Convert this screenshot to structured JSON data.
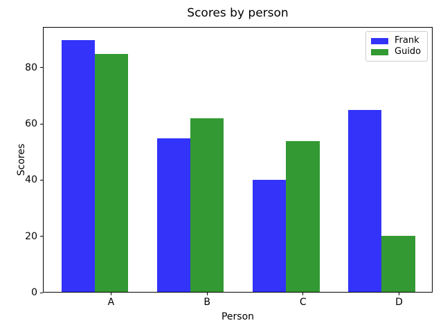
{
  "chart_data": {
    "type": "bar",
    "title": "Scores by person",
    "xlabel": "Person",
    "ylabel": "Scores",
    "categories": [
      "A",
      "B",
      "C",
      "D"
    ],
    "series": [
      {
        "name": "Frank",
        "color": "#3333fa",
        "offset": -0.35,
        "values": [
          90,
          55,
          40,
          65
        ]
      },
      {
        "name": "Guido",
        "color": "#339933",
        "offset": 0,
        "values": [
          85,
          62,
          54,
          20
        ]
      }
    ],
    "bar_width": 0.35,
    "xlim": [
      -0.71,
      3.35
    ],
    "ylim": [
      0,
      94.5
    ],
    "yticks": [
      0,
      20,
      40,
      60,
      80
    ],
    "grid": false,
    "legend_position": "upper right"
  }
}
